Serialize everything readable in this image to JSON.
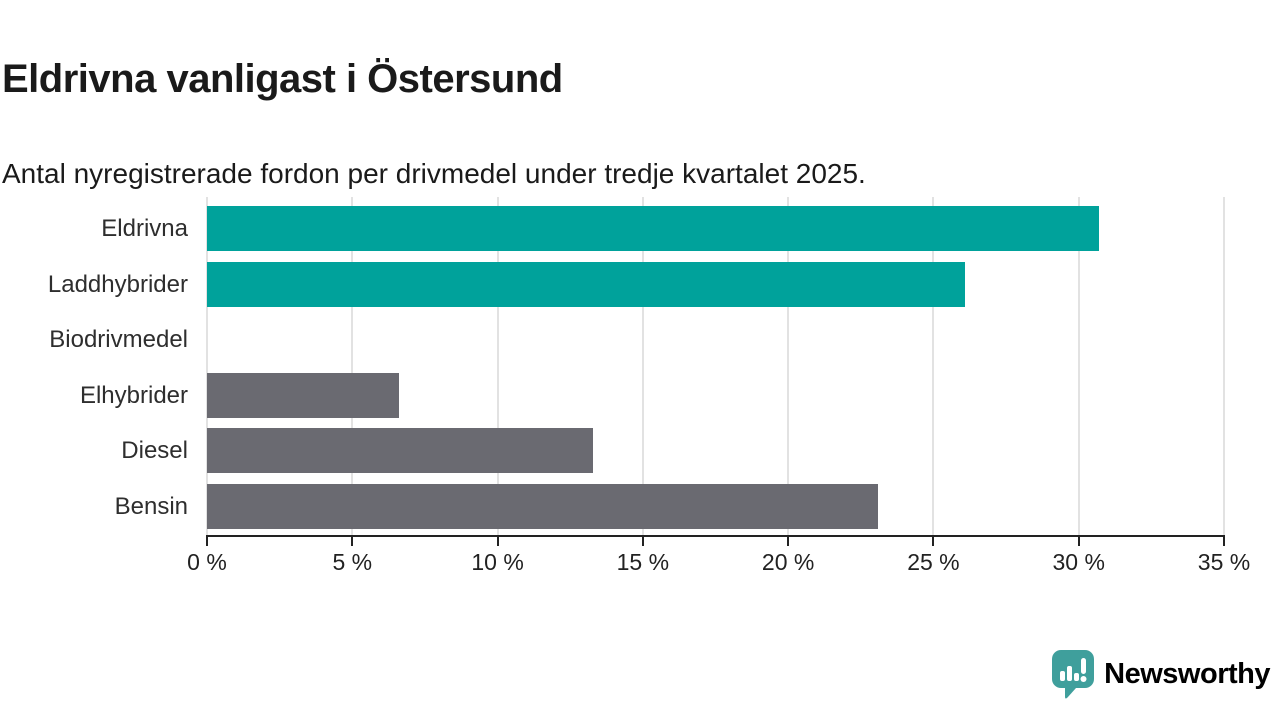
{
  "header": {
    "title": "Eldrivna vanligast i Östersund",
    "subtitle": "Antal nyregistrerade fordon per drivmedel under tredje kvartalet 2025."
  },
  "chart_data": {
    "type": "bar",
    "orientation": "horizontal",
    "categories": [
      "Eldrivna",
      "Laddhybrider",
      "Biodrivmedel",
      "Elhybrider",
      "Diesel",
      "Bensin"
    ],
    "values": [
      30.7,
      26.1,
      0,
      6.6,
      13.3,
      23.1
    ],
    "unit": "%",
    "title": "Eldrivna vanligast i Östersund",
    "xlabel": "",
    "ylabel": "",
    "xlim": [
      0,
      35
    ],
    "x_ticks": [
      0,
      5,
      10,
      15,
      20,
      25,
      30,
      35
    ],
    "x_tick_labels": [
      "0 %",
      "5 %",
      "10 %",
      "15 %",
      "20 %",
      "25 %",
      "30 %",
      "35 %"
    ],
    "bar_colors": [
      "#00a29b",
      "#00a29b",
      "#6a6a71",
      "#6a6a71",
      "#6a6a71",
      "#6a6a71"
    ],
    "grid": true,
    "legend": false
  },
  "colors": {
    "highlight": "#00a29b",
    "neutral": "#6a6a71",
    "gridline": "#e2e2e2",
    "axis": "#222222",
    "text": "#1a1a1a",
    "logo": "#3a9794"
  },
  "footer": {
    "logo_text": "Newsworthy",
    "logo_icon": "speech-bubble-with-bar-chart-and-exclamation"
  }
}
